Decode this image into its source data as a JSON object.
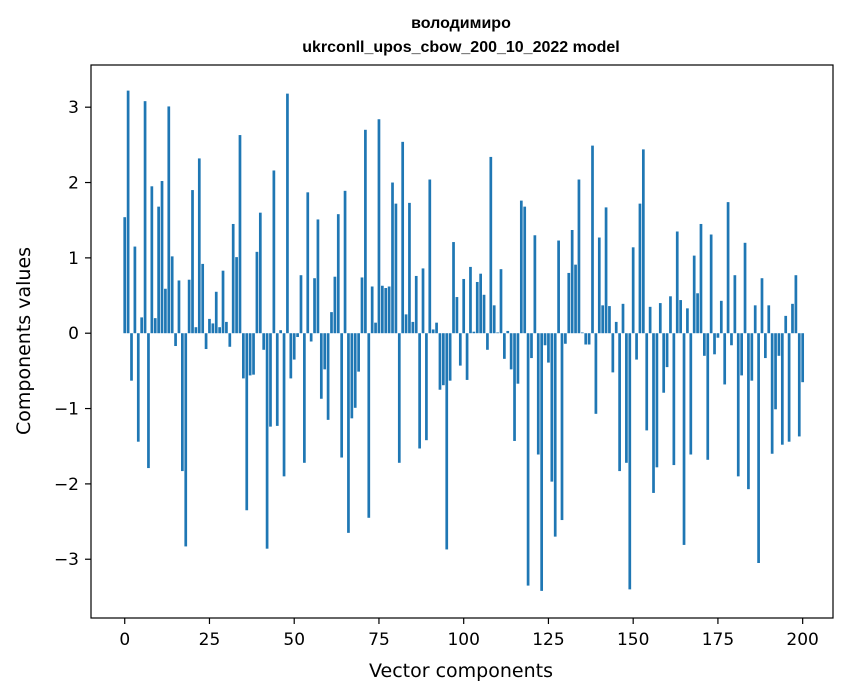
{
  "chart_data": {
    "type": "bar",
    "title_line1": "володимиро",
    "title_line2": "ukrconll_upos_cbow_200_10_2022 model",
    "xlabel": "Vector components",
    "ylabel": "Components values",
    "xlim": [
      -9.95,
      208.95
    ],
    "ylim": [
      -3.78,
      3.56
    ],
    "xticks": [
      0,
      25,
      50,
      75,
      100,
      125,
      150,
      175,
      200
    ],
    "yticks": [
      -3,
      -2,
      -1,
      0,
      1,
      2,
      3
    ],
    "xtick_labels": [
      "0",
      "25",
      "50",
      "75",
      "100",
      "125",
      "150",
      "175",
      "200"
    ],
    "ytick_labels": [
      "−3",
      "−2",
      "−1",
      "0",
      "1",
      "2",
      "3"
    ],
    "grid": false,
    "bar_color": "#1f77b4",
    "values": [
      1.54,
      3.22,
      -0.63,
      1.15,
      -1.44,
      0.21,
      3.08,
      -1.79,
      1.95,
      0.2,
      1.68,
      2.02,
      0.59,
      3.01,
      1.02,
      -0.17,
      0.7,
      -1.83,
      -2.83,
      0.71,
      1.9,
      0.08,
      2.32,
      0.92,
      -0.21,
      0.19,
      0.13,
      0.55,
      0.08,
      0.83,
      0.15,
      -0.18,
      1.45,
      1.01,
      2.63,
      -0.6,
      -2.35,
      -0.56,
      -0.55,
      1.08,
      1.6,
      -0.22,
      -2.86,
      -1.24,
      2.16,
      -1.23,
      0.04,
      -1.9,
      3.18,
      -0.6,
      -0.35,
      -0.05,
      0.77,
      -1.72,
      1.87,
      -0.11,
      0.73,
      1.51,
      -0.87,
      -0.48,
      -1.15,
      0.28,
      0.75,
      1.58,
      -1.65,
      1.89,
      -2.65,
      -1.13,
      -0.99,
      -0.51,
      0.74,
      2.7,
      -2.45,
      0.62,
      0.14,
      2.84,
      0.63,
      0.6,
      0.62,
      2.0,
      1.72,
      -1.72,
      2.54,
      0.25,
      1.73,
      0.15,
      0.76,
      -1.53,
      0.86,
      -1.42,
      2.04,
      0.05,
      0.14,
      -0.75,
      -0.69,
      -2.87,
      -0.63,
      1.21,
      0.48,
      -0.43,
      0.72,
      -0.62,
      0.88,
      0.02,
      0.68,
      0.79,
      0.51,
      -0.22,
      2.34,
      0.37,
      0.01,
      0.85,
      -0.34,
      0.03,
      -0.48,
      -1.43,
      -0.67,
      1.76,
      1.68,
      -3.35,
      -0.33,
      1.3,
      -1.61,
      -3.42,
      -0.16,
      -0.39,
      -1.97,
      -2.7,
      1.23,
      -2.48,
      -0.14,
      0.8,
      1.37,
      0.91,
      2.04,
      0.01,
      -0.15,
      -0.15,
      2.49,
      -1.07,
      1.27,
      0.37,
      1.67,
      0.36,
      -0.52,
      0.15,
      -1.83,
      0.39,
      -1.72,
      -3.4,
      1.14,
      -0.35,
      1.72,
      2.44,
      -1.29,
      0.35,
      -2.12,
      -1.78,
      0.4,
      -0.79,
      -0.45,
      0.49,
      -1.75,
      1.35,
      0.44,
      -2.81,
      0.33,
      -1.61,
      1.03,
      0.53,
      1.45,
      -0.3,
      -1.68,
      1.31,
      -0.28,
      -0.06,
      0.43,
      -0.68,
      1.74,
      -0.16,
      0.77,
      -1.9,
      -0.56,
      1.2,
      -2.07,
      -0.63,
      0.37,
      -3.05,
      0.73,
      -0.33,
      0.37,
      -1.6,
      -1.01,
      -0.3,
      -1.48,
      0.23,
      -1.44,
      0.39,
      0.77,
      -1.37,
      -0.65
    ]
  }
}
